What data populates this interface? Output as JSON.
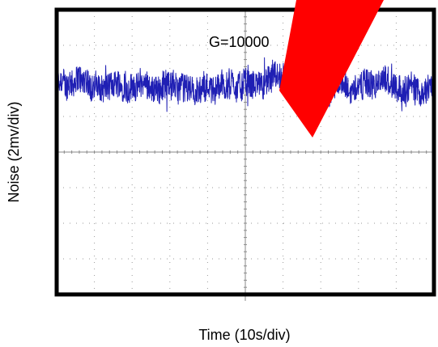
{
  "chart_data": {
    "type": "line",
    "xlabel": "Time (10s/div)",
    "ylabel": "Noise (2mv/div)",
    "annotation": "G=10000",
    "x_divisions": 10,
    "y_divisions": 8,
    "xlim": [
      0,
      10
    ],
    "ylim": [
      -4,
      4
    ],
    "grid": "dotted",
    "series": [
      {
        "color": "#1f1fb4",
        "y_mean": 1.85,
        "y_amplitude": 0.5,
        "x_start": 0,
        "x_end": 10
      }
    ]
  },
  "colors": {
    "trace": "#1f1fb4",
    "frame": "#000000",
    "grid": "#9a9a9a",
    "watermark": "#ff0000"
  },
  "icons": {
    "watermark": "red-diagonal-stripe"
  }
}
